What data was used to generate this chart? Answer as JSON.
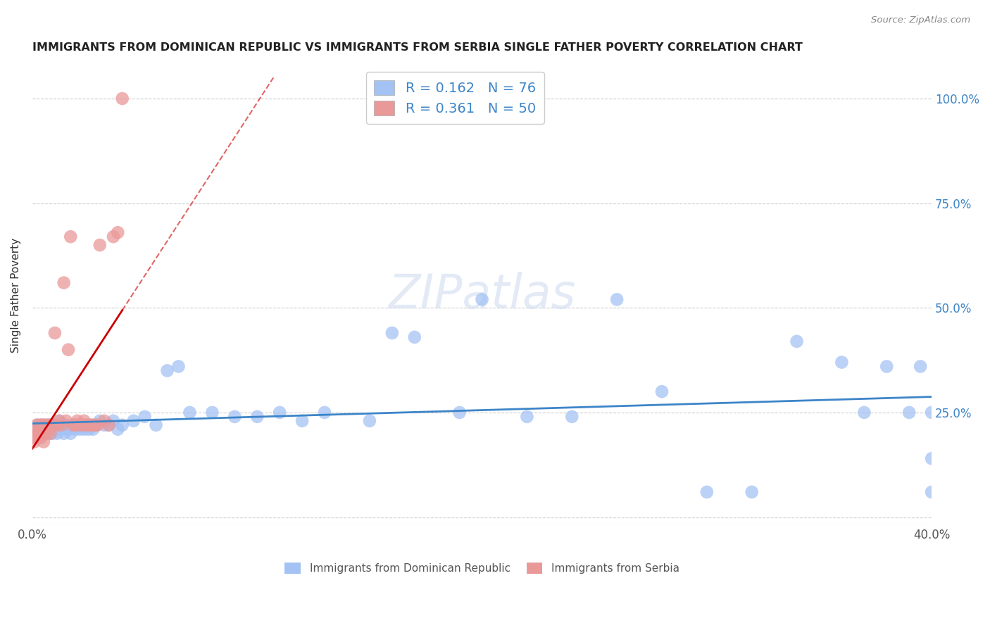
{
  "title": "IMMIGRANTS FROM DOMINICAN REPUBLIC VS IMMIGRANTS FROM SERBIA SINGLE FATHER POVERTY CORRELATION CHART",
  "source": "Source: ZipAtlas.com",
  "ylabel": "Single Father Poverty",
  "legend1_label": "Immigrants from Dominican Republic",
  "legend2_label": "Immigrants from Serbia",
  "R1": 0.162,
  "N1": 76,
  "R2": 0.361,
  "N2": 50,
  "color_blue": "#a4c2f4",
  "color_pink": "#ea9999",
  "color_blue_line": "#3d85c8",
  "color_pink_line": "#cc0000",
  "color_blue_text": "#3d85c8",
  "xlim": [
    0.0,
    0.4
  ],
  "ylim": [
    -0.02,
    1.08
  ],
  "blue_x": [
    0.001,
    0.002,
    0.002,
    0.003,
    0.003,
    0.004,
    0.004,
    0.005,
    0.005,
    0.005,
    0.006,
    0.006,
    0.007,
    0.007,
    0.008,
    0.008,
    0.009,
    0.009,
    0.01,
    0.01,
    0.011,
    0.012,
    0.013,
    0.014,
    0.015,
    0.016,
    0.017,
    0.018,
    0.019,
    0.02,
    0.021,
    0.022,
    0.023,
    0.024,
    0.025,
    0.026,
    0.027,
    0.028,
    0.03,
    0.032,
    0.034,
    0.036,
    0.038,
    0.04,
    0.045,
    0.05,
    0.055,
    0.06,
    0.065,
    0.07,
    0.08,
    0.09,
    0.1,
    0.11,
    0.12,
    0.13,
    0.15,
    0.16,
    0.17,
    0.19,
    0.2,
    0.22,
    0.24,
    0.26,
    0.28,
    0.3,
    0.32,
    0.34,
    0.36,
    0.37,
    0.38,
    0.39,
    0.395,
    0.4,
    0.4,
    0.4
  ],
  "blue_y": [
    0.2,
    0.22,
    0.21,
    0.2,
    0.19,
    0.21,
    0.22,
    0.2,
    0.22,
    0.21,
    0.21,
    0.2,
    0.22,
    0.21,
    0.22,
    0.2,
    0.21,
    0.2,
    0.22,
    0.21,
    0.2,
    0.23,
    0.21,
    0.2,
    0.22,
    0.21,
    0.2,
    0.22,
    0.21,
    0.22,
    0.21,
    0.22,
    0.21,
    0.22,
    0.21,
    0.22,
    0.21,
    0.22,
    0.23,
    0.22,
    0.22,
    0.23,
    0.21,
    0.22,
    0.23,
    0.24,
    0.22,
    0.35,
    0.36,
    0.25,
    0.25,
    0.24,
    0.24,
    0.25,
    0.23,
    0.25,
    0.23,
    0.44,
    0.43,
    0.25,
    0.52,
    0.24,
    0.24,
    0.52,
    0.3,
    0.06,
    0.06,
    0.42,
    0.37,
    0.25,
    0.36,
    0.25,
    0.36,
    0.06,
    0.25,
    0.14
  ],
  "pink_x": [
    0.001,
    0.001,
    0.001,
    0.002,
    0.002,
    0.002,
    0.002,
    0.003,
    0.003,
    0.003,
    0.004,
    0.004,
    0.004,
    0.005,
    0.005,
    0.005,
    0.006,
    0.006,
    0.007,
    0.007,
    0.008,
    0.008,
    0.009,
    0.01,
    0.01,
    0.011,
    0.012,
    0.013,
    0.014,
    0.015,
    0.016,
    0.017,
    0.018,
    0.019,
    0.02,
    0.021,
    0.022,
    0.023,
    0.024,
    0.025,
    0.026,
    0.027,
    0.028,
    0.029,
    0.03,
    0.032,
    0.034,
    0.036,
    0.038,
    0.04
  ],
  "pink_y": [
    0.2,
    0.19,
    0.18,
    0.22,
    0.21,
    0.2,
    0.19,
    0.22,
    0.21,
    0.2,
    0.22,
    0.21,
    0.19,
    0.22,
    0.21,
    0.18,
    0.22,
    0.2,
    0.22,
    0.21,
    0.22,
    0.2,
    0.22,
    0.44,
    0.22,
    0.22,
    0.23,
    0.22,
    0.56,
    0.23,
    0.4,
    0.67,
    0.22,
    0.22,
    0.23,
    0.22,
    0.22,
    0.23,
    0.22,
    0.22,
    0.22,
    0.22,
    0.22,
    0.22,
    0.65,
    0.23,
    0.22,
    0.67,
    0.68,
    1.0
  ],
  "xticks": [
    0.0,
    0.1,
    0.2,
    0.3,
    0.4
  ],
  "xticklabels": [
    "0.0%",
    "",
    "",
    "",
    "40.0%"
  ],
  "yticks_right": [
    0.0,
    0.25,
    0.5,
    0.75,
    1.0
  ],
  "yticklabels_right": [
    "",
    "25.0%",
    "50.0%",
    "75.0%",
    "100.0%"
  ]
}
